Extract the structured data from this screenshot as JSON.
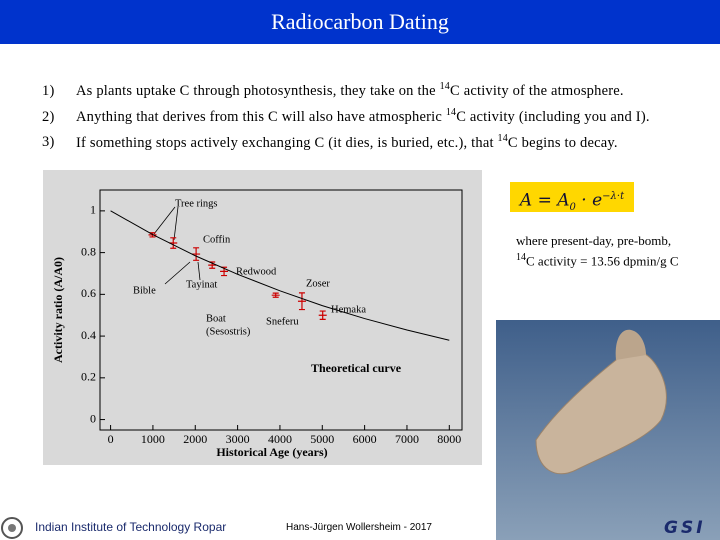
{
  "header": {
    "title": "Radiocarbon Dating"
  },
  "bullets": [
    {
      "marker": "1)",
      "before": "As plants uptake C through photosynthesis, they take on the ",
      "sup": "14",
      "after": "C activity of the atmosphere."
    },
    {
      "marker": "2)",
      "before": "Anything that derives from this C will also have atmospheric ",
      "sup": "14",
      "after": "C activity (including you and I)."
    },
    {
      "marker": "3)",
      "before": "If something stops actively exchanging C (it dies, is buried, etc.), that ",
      "sup": "14",
      "after": "C begins to decay."
    }
  ],
  "formula": {
    "lhs": "A = A",
    "sub": "0",
    "mid": " · e",
    "exp": "−λ·t"
  },
  "note": {
    "line1": "where present-day, pre-bomb,",
    "sup": "14",
    "line2": "C activity = 13.56 dpmin/g C"
  },
  "footer": {
    "left": "Indian Institute of Technology Ropar",
    "center": "Hans-Jürgen Wollersheim - 2017",
    "logo": "GSI"
  },
  "chart_data": {
    "type": "scatter",
    "xlabel": "Historical Age (years)",
    "ylabel": "Activity ratio (A/A0)",
    "xlim": [
      -250,
      8300
    ],
    "ylim": [
      -0.05,
      1.1
    ],
    "xticks": [
      0,
      1000,
      2000,
      3000,
      4000,
      5000,
      6000,
      7000,
      8000
    ],
    "yticks": [
      0,
      0.2,
      0.4,
      0.6,
      0.8,
      1
    ],
    "series": [
      {
        "type": "scatter",
        "color": "#cc0000",
        "x": [
          990,
          1480,
          2020,
          2400,
          2680,
          3900,
          4520,
          5010
        ],
        "values": [
          0.885,
          0.846,
          0.793,
          0.74,
          0.71,
          0.596,
          0.567,
          0.5
        ],
        "errors": [
          0.01,
          0.025,
          0.03,
          0.015,
          0.02,
          0.01,
          0.04,
          0.02
        ]
      },
      {
        "type": "line",
        "color": "#000000",
        "x": [
          0,
          1000,
          2000,
          3000,
          4000,
          5000,
          6000,
          7000,
          8000
        ],
        "values": [
          1,
          0.886,
          0.785,
          0.696,
          0.617,
          0.546,
          0.484,
          0.429,
          0.38
        ]
      }
    ],
    "annotations": [
      {
        "lines": [
          "Tree rings"
        ]
      },
      {
        "lines": [
          "Coffin"
        ]
      },
      {
        "lines": [
          "Redwood"
        ]
      },
      {
        "lines": [
          "Zoser"
        ]
      },
      {
        "lines": [
          "Bible"
        ]
      },
      {
        "lines": [
          "Tayinat"
        ]
      },
      {
        "lines": [
          "Hemaka"
        ]
      },
      {
        "lines": [
          "Boat",
          "(Sesostris)"
        ]
      },
      {
        "lines": [
          "Sneferu"
        ]
      },
      {
        "lines": [
          "Theoretical curve"
        ]
      }
    ]
  }
}
